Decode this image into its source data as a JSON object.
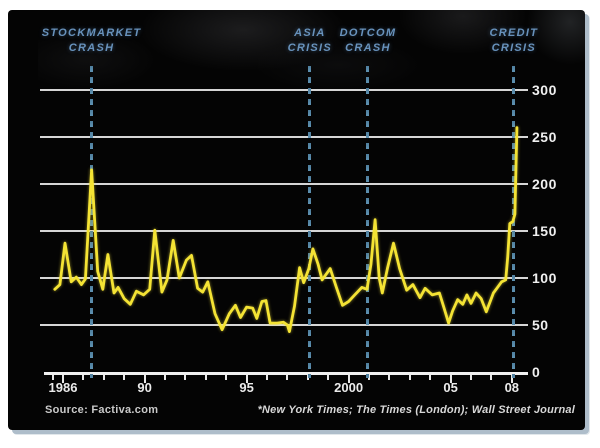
{
  "panel": {
    "background": "#040404",
    "page_background": "#ffffff",
    "edge_shadow": "#a8b8c6"
  },
  "colors": {
    "line": "#f4e334",
    "event_label": "#6892bc",
    "event_line": "#4f7f9e",
    "gridline": "#d6d6d6",
    "axis_text": "#f0f0f0"
  },
  "events": [
    {
      "line1": "STOCKMARKET",
      "line2": "CRASH",
      "year": 1987.4
    },
    {
      "line1": "ASIA",
      "line2": "CRISIS",
      "year": 1998.1
    },
    {
      "line1": "DOTCOM",
      "line2": "CRASH",
      "year": 2000.95
    },
    {
      "line1": "CREDIT",
      "line2": "CRISIS",
      "year": 2008.1
    }
  ],
  "footer": {
    "source": "Source: Factiva.com",
    "footnote": "*New York Times; The Times (London); Wall Street Journal"
  },
  "chart_data": {
    "type": "line",
    "title": "",
    "xlabel": "",
    "ylabel": "",
    "x_range": [
      1985.5,
      2008.6
    ],
    "ylim": [
      0,
      300
    ],
    "grid": "horizontal",
    "legend": "none",
    "annotations": [
      "STOCKMARKET CRASH",
      "ASIA CRISIS",
      "DOTCOM CRASH",
      "CREDIT CRISIS"
    ],
    "y_ticks": [
      {
        "value": 300,
        "text": "300"
      },
      {
        "value": 250,
        "text": "250"
      },
      {
        "value": 200,
        "text": "200"
      },
      {
        "value": 150,
        "text": "150"
      },
      {
        "value": 100,
        "text": "100"
      },
      {
        "value": 50,
        "text": "50"
      },
      {
        "value": 0,
        "text": "0"
      }
    ],
    "x_tick_years": [
      1985.5,
      1986,
      1987,
      1988,
      1989,
      1990,
      1991,
      1992,
      1993,
      1994,
      1995,
      1996,
      1997,
      1998,
      1999,
      2000,
      2001,
      2002,
      2003,
      2004,
      2005,
      2006,
      2007,
      2008
    ],
    "x_major_years": [
      1986,
      1990,
      1995,
      2000,
      2005,
      2008
    ],
    "x_labels": [
      {
        "year": 1986,
        "text": "1986"
      },
      {
        "year": 1990,
        "text": "90"
      },
      {
        "year": 1995,
        "text": "95"
      },
      {
        "year": 2000,
        "text": "2000"
      },
      {
        "year": 2005,
        "text": "05"
      },
      {
        "year": 2008,
        "text": "08"
      }
    ],
    "series": [
      {
        "name": "crisis-press-mentions",
        "color": "#f4e334",
        "points": [
          [
            1985.6,
            88
          ],
          [
            1985.85,
            93
          ],
          [
            1986.1,
            137
          ],
          [
            1986.4,
            96
          ],
          [
            1986.65,
            101
          ],
          [
            1986.9,
            93
          ],
          [
            1987.1,
            99
          ],
          [
            1987.4,
            215
          ],
          [
            1987.7,
            107
          ],
          [
            1987.95,
            88
          ],
          [
            1988.2,
            125
          ],
          [
            1988.5,
            84
          ],
          [
            1988.7,
            90
          ],
          [
            1989.0,
            78
          ],
          [
            1989.3,
            72
          ],
          [
            1989.6,
            86
          ],
          [
            1989.95,
            82
          ],
          [
            1990.25,
            88
          ],
          [
            1990.5,
            151
          ],
          [
            1990.85,
            85
          ],
          [
            1991.1,
            98
          ],
          [
            1991.4,
            140
          ],
          [
            1991.7,
            100
          ],
          [
            1992.05,
            119
          ],
          [
            1992.3,
            124
          ],
          [
            1992.6,
            89
          ],
          [
            1992.85,
            85
          ],
          [
            1993.1,
            96
          ],
          [
            1993.45,
            62
          ],
          [
            1993.8,
            45
          ],
          [
            1994.15,
            62
          ],
          [
            1994.45,
            71
          ],
          [
            1994.7,
            58
          ],
          [
            1995.0,
            69
          ],
          [
            1995.3,
            68
          ],
          [
            1995.5,
            57
          ],
          [
            1995.75,
            75
          ],
          [
            1995.95,
            76
          ],
          [
            1996.15,
            52
          ],
          [
            1996.5,
            52
          ],
          [
            1996.8,
            53
          ],
          [
            1997.0,
            50
          ],
          [
            1997.1,
            43
          ],
          [
            1997.35,
            70
          ],
          [
            1997.6,
            111
          ],
          [
            1997.8,
            95
          ],
          [
            1998.05,
            110
          ],
          [
            1998.25,
            131
          ],
          [
            1998.5,
            115
          ],
          [
            1998.7,
            98
          ],
          [
            1999.1,
            110
          ],
          [
            1999.4,
            90
          ],
          [
            1999.7,
            71
          ],
          [
            2000.0,
            75
          ],
          [
            2000.3,
            82
          ],
          [
            2000.65,
            90
          ],
          [
            2000.9,
            88
          ],
          [
            2001.1,
            115
          ],
          [
            2001.3,
            162
          ],
          [
            2001.5,
            100
          ],
          [
            2001.65,
            84
          ],
          [
            2001.9,
            110
          ],
          [
            2002.2,
            137
          ],
          [
            2002.5,
            110
          ],
          [
            2002.85,
            87
          ],
          [
            2003.15,
            93
          ],
          [
            2003.5,
            79
          ],
          [
            2003.75,
            89
          ],
          [
            2004.1,
            82
          ],
          [
            2004.45,
            84
          ],
          [
            2004.65,
            70
          ],
          [
            2004.9,
            52
          ],
          [
            2005.1,
            65
          ],
          [
            2005.35,
            77
          ],
          [
            2005.6,
            72
          ],
          [
            2005.8,
            82
          ],
          [
            2006.0,
            73
          ],
          [
            2006.25,
            84
          ],
          [
            2006.5,
            78
          ],
          [
            2006.75,
            64
          ],
          [
            2007.1,
            84
          ],
          [
            2007.3,
            90
          ],
          [
            2007.5,
            96
          ],
          [
            2007.7,
            98
          ],
          [
            2007.8,
            122
          ],
          [
            2007.9,
            158
          ],
          [
            2008.05,
            160
          ],
          [
            2008.15,
            168
          ],
          [
            2008.25,
            260
          ]
        ]
      }
    ]
  }
}
